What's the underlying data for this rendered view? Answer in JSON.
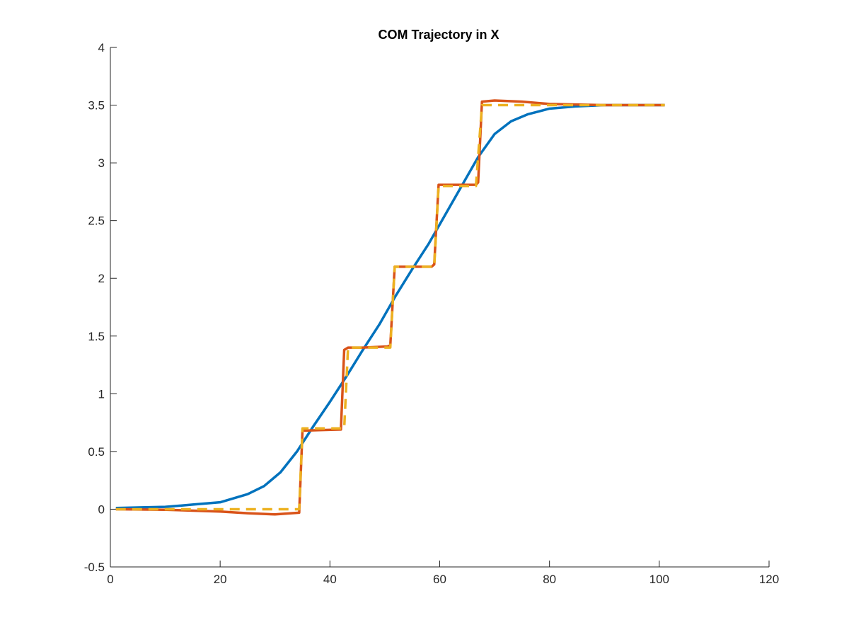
{
  "chart_data": {
    "type": "line",
    "title": "COM Trajectory in X",
    "xlabel": "",
    "ylabel": "",
    "xlim": [
      0,
      120
    ],
    "ylim": [
      -0.5,
      4
    ],
    "xticks": [
      0,
      20,
      40,
      60,
      80,
      100,
      120
    ],
    "xtick_labels": [
      "0",
      "20",
      "40",
      "60",
      "80",
      "100",
      "120"
    ],
    "yticks": [
      -0.5,
      0,
      0.5,
      1,
      1.5,
      2,
      2.5,
      3,
      3.5,
      4
    ],
    "ytick_labels": [
      "-0.5",
      "0",
      "0.5",
      "1",
      "1.5",
      "2",
      "2.5",
      "3",
      "3.5",
      "4"
    ],
    "grid": false,
    "legend": "none",
    "series": [
      {
        "color": "#0072BD",
        "style": "solid",
        "x": [
          1,
          5,
          10,
          15,
          20,
          25,
          28,
          31,
          34,
          37,
          40,
          43,
          46,
          49,
          52,
          55,
          58,
          61,
          64,
          67,
          70,
          73,
          76,
          80,
          85,
          90,
          95,
          101
        ],
        "y": [
          0.01,
          0.015,
          0.02,
          0.04,
          0.06,
          0.13,
          0.2,
          0.32,
          0.5,
          0.72,
          0.93,
          1.15,
          1.38,
          1.6,
          1.85,
          2.08,
          2.3,
          2.55,
          2.8,
          3.05,
          3.25,
          3.36,
          3.42,
          3.47,
          3.49,
          3.5,
          3.5,
          3.5
        ]
      },
      {
        "color": "#D95319",
        "style": "solid",
        "x": [
          1,
          10,
          20,
          25,
          30,
          33,
          34.4,
          35,
          38,
          42,
          42.6,
          43.3,
          46,
          50.5,
          51,
          51.8,
          55,
          58.5,
          59,
          59.8,
          63,
          66.6,
          67,
          67.7,
          70,
          75,
          80,
          90,
          101
        ],
        "y": [
          0,
          -0.005,
          -0.02,
          -0.035,
          -0.045,
          -0.035,
          -0.03,
          0.68,
          0.685,
          0.69,
          1.38,
          1.4,
          1.4,
          1.41,
          1.42,
          2.1,
          2.1,
          2.1,
          2.12,
          2.81,
          2.81,
          2.81,
          2.83,
          3.53,
          3.54,
          3.53,
          3.51,
          3.5,
          3.5
        ]
      },
      {
        "color": "#EDB120",
        "style": "dashed",
        "x": [
          1,
          34.4,
          35,
          42.6,
          43.3,
          51,
          51.8,
          59,
          59.8,
          66.6,
          67.7,
          101
        ],
        "y": [
          0,
          0,
          0.7,
          0.7,
          1.4,
          1.4,
          2.1,
          2.1,
          2.8,
          2.8,
          3.5,
          3.5
        ]
      }
    ]
  }
}
